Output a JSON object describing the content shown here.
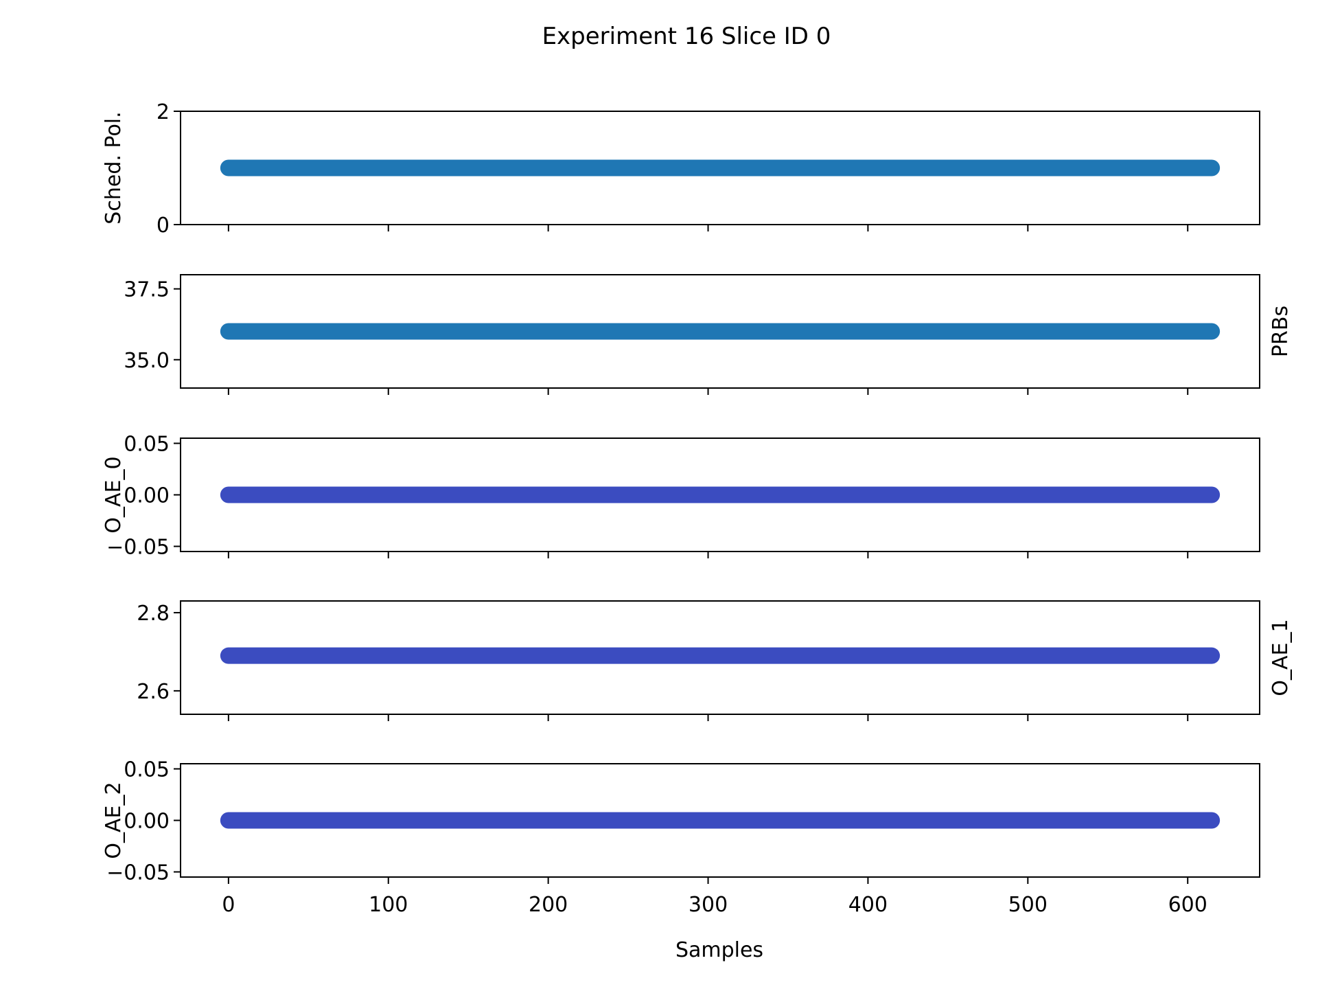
{
  "figure": {
    "title": "Experiment 16 Slice ID 0",
    "xlabel": "Samples"
  },
  "chart_data": [
    {
      "type": "scatter",
      "ylabel": "Sched. Pol.",
      "ylabel_side": "left",
      "color": "#1f77b4",
      "x_range": [
        0,
        615
      ],
      "y_value": 1,
      "ylim": [
        0,
        2
      ],
      "yticks": [
        "0",
        "2"
      ],
      "ytick_values": [
        0,
        2
      ]
    },
    {
      "type": "scatter",
      "ylabel": "PRBs",
      "ylabel_side": "right",
      "color": "#1f77b4",
      "x_range": [
        0,
        615
      ],
      "y_value": 36,
      "ylim": [
        34,
        38
      ],
      "yticks": [
        "35.0",
        "37.5"
      ],
      "ytick_values": [
        35.0,
        37.5
      ]
    },
    {
      "type": "scatter",
      "ylabel": "O_AE_0",
      "ylabel_side": "left",
      "color": "#3b4cc0",
      "x_range": [
        0,
        615
      ],
      "y_value": 0,
      "ylim": [
        -0.055,
        0.055
      ],
      "yticks": [
        "−0.05",
        "0.00",
        "0.05"
      ],
      "ytick_values": [
        -0.05,
        0.0,
        0.05
      ]
    },
    {
      "type": "scatter",
      "ylabel": "O_AE_1",
      "ylabel_side": "right",
      "color": "#3b4cc0",
      "x_range": [
        0,
        615
      ],
      "y_value": 2.69,
      "ylim": [
        2.54,
        2.83
      ],
      "yticks": [
        "2.6",
        "2.8"
      ],
      "ytick_values": [
        2.6,
        2.8
      ]
    },
    {
      "type": "scatter",
      "ylabel": "O_AE_2",
      "ylabel_side": "left",
      "color": "#3b4cc0",
      "x_range": [
        0,
        615
      ],
      "y_value": 0,
      "ylim": [
        -0.055,
        0.055
      ],
      "yticks": [
        "−0.05",
        "0.00",
        "0.05"
      ],
      "ytick_values": [
        -0.05,
        0.0,
        0.05
      ]
    }
  ],
  "x_axis": {
    "xlim": [
      -30,
      645
    ],
    "ticks": [
      "0",
      "100",
      "200",
      "300",
      "400",
      "500",
      "600"
    ],
    "tick_values": [
      0,
      100,
      200,
      300,
      400,
      500,
      600
    ]
  }
}
